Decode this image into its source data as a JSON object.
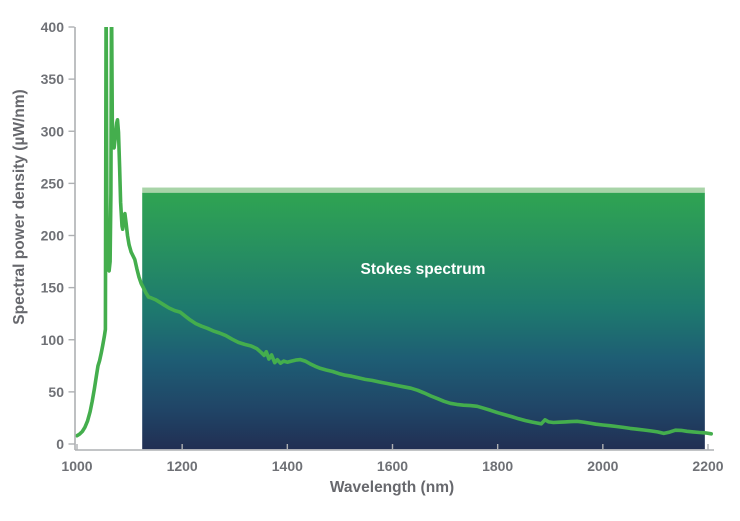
{
  "chart_data": {
    "type": "line",
    "title": "",
    "xlabel": "Wavelength (nm)",
    "ylabel": "Spectral power density (µW/nm)",
    "xlim": [
      1000,
      2200
    ],
    "ylim": [
      0,
      400
    ],
    "x_ticks": [
      1000,
      1200,
      1400,
      1600,
      1800,
      2000,
      2200
    ],
    "y_ticks": [
      0,
      50,
      100,
      150,
      200,
      250,
      300,
      350,
      400
    ],
    "grid": false,
    "legend": "none",
    "annotation": {
      "text": "Stokes spectrum",
      "x_nm": 1658,
      "value": 168,
      "color": "#ffffff"
    },
    "region": {
      "name": "stokes-spectrum-region",
      "x_start_nm": 1124,
      "x_end_nm": 2194,
      "top_value": 246,
      "band_bottom_value": 241,
      "band_color": "#a8d4a8",
      "gradient_stops": [
        {
          "offset": 0.0,
          "color": "#2fa452"
        },
        {
          "offset": 0.22,
          "color": "#279060"
        },
        {
          "offset": 0.45,
          "color": "#1e7a6e"
        },
        {
          "offset": 0.65,
          "color": "#1e5d74"
        },
        {
          "offset": 0.85,
          "color": "#204466"
        },
        {
          "offset": 1.0,
          "color": "#212f53"
        }
      ]
    },
    "series": [
      {
        "name": "spectral-power-density",
        "color": "#44ae4d",
        "line_width": 3.6,
        "points": [
          [
            1000,
            8
          ],
          [
            1005,
            9.5
          ],
          [
            1010,
            12
          ],
          [
            1015,
            16
          ],
          [
            1020,
            22
          ],
          [
            1025,
            31
          ],
          [
            1029,
            41
          ],
          [
            1033,
            53
          ],
          [
            1037,
            66
          ],
          [
            1040,
            75
          ],
          [
            1043,
            80
          ],
          [
            1046,
            87
          ],
          [
            1049,
            95
          ],
          [
            1052,
            103
          ],
          [
            1054,
            110
          ],
          [
            1055.3,
            430
          ],
          [
            1056.6,
            240
          ],
          [
            1057.6,
            180
          ],
          [
            1059,
            168
          ],
          [
            1061,
            166
          ],
          [
            1063,
            175
          ],
          [
            1064.4,
            240
          ],
          [
            1065.7,
            430
          ],
          [
            1067.2,
            310
          ],
          [
            1068.5,
            287
          ],
          [
            1070.5,
            284
          ],
          [
            1073,
            295
          ],
          [
            1075.5,
            308
          ],
          [
            1077,
            311
          ],
          [
            1079,
            299
          ],
          [
            1081,
            266
          ],
          [
            1083,
            232
          ],
          [
            1085.5,
            209
          ],
          [
            1087,
            206
          ],
          [
            1089,
            218
          ],
          [
            1091,
            221
          ],
          [
            1093.5,
            211
          ],
          [
            1096,
            200
          ],
          [
            1099,
            191
          ],
          [
            1103,
            184
          ],
          [
            1107,
            180
          ],
          [
            1110,
            177
          ],
          [
            1114,
            168
          ],
          [
            1118,
            160
          ],
          [
            1122,
            154
          ],
          [
            1126,
            150
          ],
          [
            1131,
            145
          ],
          [
            1136,
            141
          ],
          [
            1142,
            140
          ],
          [
            1149,
            138.5
          ],
          [
            1157,
            136
          ],
          [
            1165,
            133.5
          ],
          [
            1175,
            130.5
          ],
          [
            1186,
            128
          ],
          [
            1196,
            126.5
          ],
          [
            1205,
            123
          ],
          [
            1215,
            119
          ],
          [
            1226,
            115.5
          ],
          [
            1237,
            113
          ],
          [
            1248,
            111
          ],
          [
            1259,
            108.5
          ],
          [
            1271,
            106.5
          ],
          [
            1283,
            104
          ],
          [
            1295,
            100.5
          ],
          [
            1307,
            97.5
          ],
          [
            1319,
            95.5
          ],
          [
            1331,
            94
          ],
          [
            1342,
            91.5
          ],
          [
            1350,
            88
          ],
          [
            1356,
            85
          ],
          [
            1360,
            88.5
          ],
          [
            1365,
            81.5
          ],
          [
            1370,
            85.5
          ],
          [
            1376,
            78
          ],
          [
            1381,
            81
          ],
          [
            1387,
            77.5
          ],
          [
            1393,
            79.5
          ],
          [
            1400,
            78.5
          ],
          [
            1408,
            79.5
          ],
          [
            1416,
            80.5
          ],
          [
            1425,
            81
          ],
          [
            1434,
            79.5
          ],
          [
            1443,
            77
          ],
          [
            1453,
            74.5
          ],
          [
            1463,
            72.5
          ],
          [
            1474,
            71
          ],
          [
            1486,
            69.5
          ],
          [
            1498,
            67.5
          ],
          [
            1510,
            66
          ],
          [
            1522,
            65
          ],
          [
            1535,
            63.5
          ],
          [
            1548,
            62
          ],
          [
            1561,
            61
          ],
          [
            1575,
            59.5
          ],
          [
            1590,
            58
          ],
          [
            1605,
            56.5
          ],
          [
            1620,
            55
          ],
          [
            1635,
            53.5
          ],
          [
            1648,
            51.5
          ],
          [
            1660,
            49
          ],
          [
            1673,
            46
          ],
          [
            1686,
            43.5
          ],
          [
            1698,
            41
          ],
          [
            1710,
            39
          ],
          [
            1722,
            38
          ],
          [
            1735,
            37.2
          ],
          [
            1748,
            36.8
          ],
          [
            1761,
            36.2
          ],
          [
            1774,
            34.2
          ],
          [
            1787,
            32.2
          ],
          [
            1800,
            30
          ],
          [
            1813,
            28.2
          ],
          [
            1826,
            26.4
          ],
          [
            1840,
            24.2
          ],
          [
            1853,
            22.4
          ],
          [
            1866,
            21
          ],
          [
            1876,
            20
          ],
          [
            1883,
            19.4
          ],
          [
            1890,
            23.2
          ],
          [
            1897,
            21.2
          ],
          [
            1906,
            20.6
          ],
          [
            1917,
            20.9
          ],
          [
            1928,
            21.2
          ],
          [
            1939,
            21.5
          ],
          [
            1951,
            21.8
          ],
          [
            1963,
            21
          ],
          [
            1975,
            20
          ],
          [
            1987,
            19
          ],
          [
            2000,
            18.2
          ],
          [
            2013,
            17.6
          ],
          [
            2026,
            16.8
          ],
          [
            2039,
            15.9
          ],
          [
            2052,
            15
          ],
          [
            2065,
            14.2
          ],
          [
            2078,
            13.4
          ],
          [
            2091,
            12.6
          ],
          [
            2104,
            11.6
          ],
          [
            2116,
            10.2
          ],
          [
            2127,
            11.4
          ],
          [
            2138,
            13.2
          ],
          [
            2149,
            13
          ],
          [
            2160,
            12.2
          ],
          [
            2172,
            11.6
          ],
          [
            2184,
            11
          ],
          [
            2195,
            10.6
          ],
          [
            2206,
            9.8
          ]
        ]
      }
    ]
  }
}
